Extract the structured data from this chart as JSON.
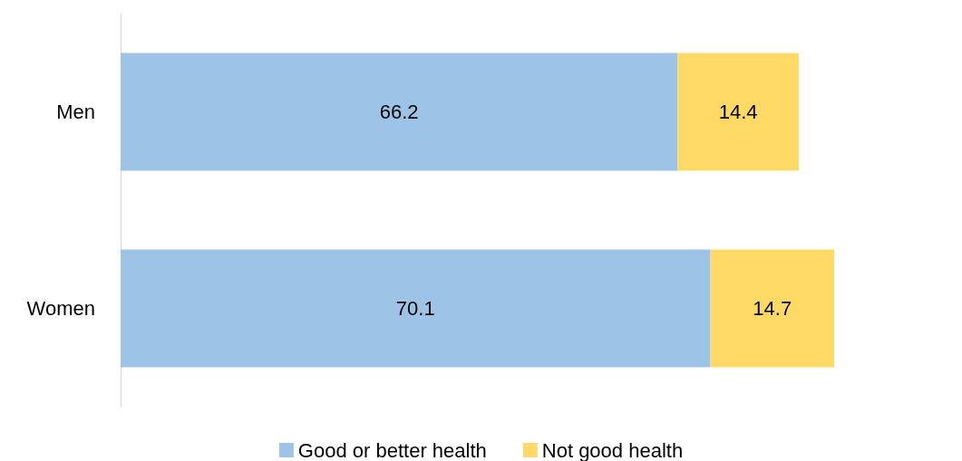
{
  "chart_data": {
    "type": "bar",
    "orientation": "horizontal",
    "stacked": true,
    "data_labels": true,
    "legend": "bottom",
    "categories": [
      "Men",
      "Women"
    ],
    "series": [
      {
        "name": "Good or better health",
        "color": "#9dc3e6",
        "values": [
          66.2,
          70.1
        ]
      },
      {
        "name": "Not good health",
        "color": "#ffd966",
        "values": [
          14.4,
          14.7
        ]
      }
    ]
  }
}
